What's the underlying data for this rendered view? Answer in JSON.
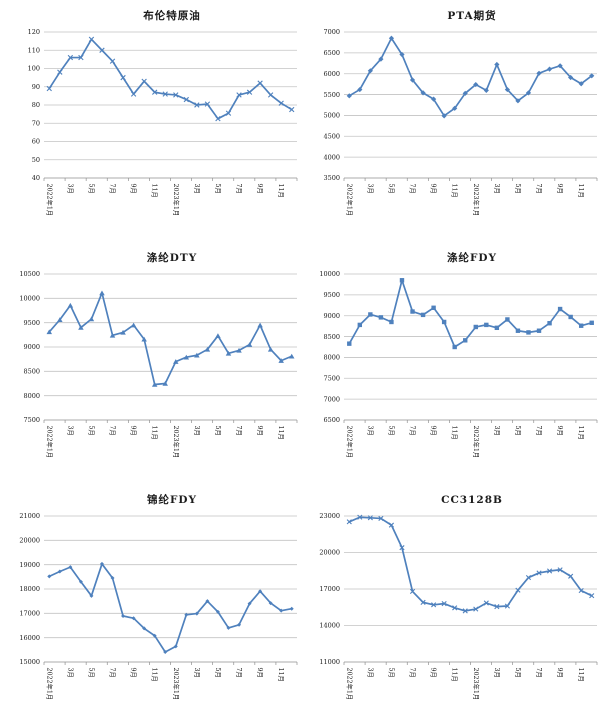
{
  "theme": {
    "line_color": "#4F81BD",
    "grid_color": "#c3c3c3",
    "axis_color": "#8f8f8f",
    "text_color": "#1a1a1a",
    "title_color": "#1c1c1c",
    "background": "#ffffff"
  },
  "chart_data": [
    {
      "type": "line",
      "title": "布伦特原油",
      "legend": "none",
      "grid": true,
      "marker": "x",
      "marker_size": 2.3,
      "x_labels": [
        "2022年1月",
        "3月",
        "5月",
        "7月",
        "9月",
        "11月",
        "2023年1月",
        "3月",
        "5月",
        "7月",
        "9月",
        "11月"
      ],
      "x_label_step": 2,
      "n_points": 24,
      "values": [
        89,
        98,
        106,
        106,
        116,
        110,
        104,
        95,
        86,
        93,
        87,
        86,
        85.5,
        83,
        80,
        80.5,
        72.5,
        75.5,
        85.5,
        87,
        92,
        85.5,
        81,
        77.5
      ],
      "ylim": [
        40,
        120
      ],
      "ystep": 10,
      "xlabel": "",
      "ylabel": ""
    },
    {
      "type": "line",
      "title": "PTA期货",
      "legend": "none",
      "grid": true,
      "marker": "diamond",
      "marker_size": 2.6,
      "x_labels": [
        "2022年1月",
        "3月",
        "5月",
        "7月",
        "9月",
        "11月",
        "2023年1月",
        "3月",
        "5月",
        "7月",
        "9月",
        "11月"
      ],
      "x_label_step": 2,
      "n_points": 24,
      "values": [
        5470,
        5620,
        6070,
        6350,
        6850,
        6460,
        5850,
        5540,
        5390,
        4990,
        5170,
        5530,
        5740,
        5600,
        6220,
        5620,
        5350,
        5540,
        6010,
        6110,
        6190,
        5910,
        5760,
        5950
      ],
      "ylim": [
        3500,
        7000
      ],
      "ystep": 500,
      "xlabel": "",
      "ylabel": ""
    },
    {
      "type": "line",
      "title": "涤纶DTY",
      "legend": "none",
      "grid": true,
      "marker": "triangle",
      "marker_size": 2.5,
      "x_labels": [
        "2022年1月",
        "3月",
        "5月",
        "7月",
        "9月",
        "11月",
        "2023年1月",
        "3月",
        "5月",
        "7月",
        "9月",
        "11月"
      ],
      "x_label_step": 2,
      "n_points": 24,
      "values": [
        9310,
        9560,
        9855,
        9400,
        9575,
        10110,
        9240,
        9300,
        9450,
        9160,
        8230,
        8250,
        8700,
        8790,
        8830,
        8950,
        9230,
        8870,
        8930,
        9050,
        9450,
        8950,
        8720,
        8810
      ],
      "ylim": [
        7500,
        10500
      ],
      "ystep": 500,
      "xlabel": "",
      "ylabel": ""
    },
    {
      "type": "line",
      "title": "涤纶FDY",
      "legend": "none",
      "grid": true,
      "marker": "square",
      "marker_size": 2.2,
      "x_labels": [
        "2022年1月",
        "3月",
        "5月",
        "7月",
        "9月",
        "11月",
        "2023年1月",
        "3月",
        "5月",
        "7月",
        "9月",
        "11月"
      ],
      "x_label_step": 2,
      "n_points": 24,
      "values": [
        8330,
        8780,
        9030,
        8960,
        8850,
        9850,
        9100,
        9020,
        9190,
        8850,
        8250,
        8410,
        8730,
        8780,
        8710,
        8910,
        8640,
        8600,
        8640,
        8820,
        9160,
        8970,
        8760,
        8830
      ],
      "ylim": [
        6500,
        10000
      ],
      "ystep": 500,
      "xlabel": "",
      "ylabel": ""
    },
    {
      "type": "line",
      "title": "锦纶FDY",
      "legend": "none",
      "grid": true,
      "marker": "diamond",
      "marker_size": 2.0,
      "x_labels": [
        "2022年1月",
        "3月",
        "5月",
        "7月",
        "9月",
        "11月",
        "2023年1月",
        "3月",
        "5月",
        "7月",
        "9月",
        "11月"
      ],
      "x_label_step": 2,
      "n_points": 24,
      "values": [
        18520,
        18720,
        18900,
        18300,
        17720,
        19030,
        18450,
        16890,
        16800,
        16380,
        16080,
        15410,
        15640,
        16940,
        16990,
        17500,
        17060,
        16400,
        16530,
        17400,
        17910,
        17420,
        17110,
        17190
      ],
      "ylim": [
        15000,
        21000
      ],
      "ystep": 1000,
      "xlabel": "",
      "ylabel": ""
    },
    {
      "type": "line",
      "title": "CC3128B",
      "legend": "none",
      "grid": true,
      "marker": "x",
      "marker_size": 2.2,
      "x_labels": [
        "2022年1月",
        "3月",
        "5月",
        "7月",
        "9月",
        "11月",
        "2023年1月",
        "3月",
        "5月",
        "7月",
        "9月",
        "11月"
      ],
      "x_label_step": 2,
      "n_points": 24,
      "values": [
        22520,
        22900,
        22850,
        22800,
        22250,
        20400,
        16800,
        15900,
        15700,
        15800,
        15450,
        15200,
        15350,
        15850,
        15550,
        15600,
        16900,
        17940,
        18320,
        18480,
        18580,
        18050,
        16870,
        16450
      ],
      "ylim": [
        11000,
        23000
      ],
      "ystep": 3000,
      "xlabel": "",
      "ylabel": ""
    }
  ]
}
